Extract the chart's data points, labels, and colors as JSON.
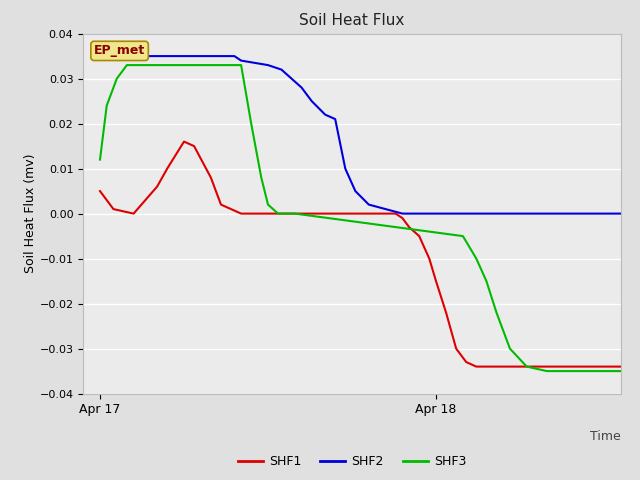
{
  "title": "Soil Heat Flux",
  "xlabel": "Time",
  "ylabel": "Soil Heat Flux (mv)",
  "ylim": [
    -0.04,
    0.04
  ],
  "yticks": [
    -0.04,
    -0.03,
    -0.02,
    -0.01,
    0.0,
    0.01,
    0.02,
    0.03,
    0.04
  ],
  "xtick_labels": [
    "Apr 17",
    "Apr 18"
  ],
  "xtick_pos": [
    0.0,
    1.0
  ],
  "xlim": [
    -0.05,
    1.55
  ],
  "annotation_text": "EP_met",
  "fig_facecolor": "#e0e0e0",
  "plot_bg_color": "#ebebeb",
  "grid_color": "#ffffff",
  "shf1_color": "#dd0000",
  "shf2_color": "#0000dd",
  "shf3_color": "#00bb00",
  "legend_labels": [
    "SHF1",
    "SHF2",
    "SHF3"
  ],
  "shf1_x": [
    0.0,
    0.04,
    0.1,
    0.17,
    0.2,
    0.25,
    0.28,
    0.33,
    0.36,
    0.42,
    0.48,
    0.52,
    0.55,
    0.58,
    0.88,
    0.9,
    0.92,
    0.95,
    0.98,
    1.0,
    1.03,
    1.06,
    1.09,
    1.12,
    1.2,
    1.45,
    1.55
  ],
  "shf1_y": [
    0.005,
    0.001,
    0.0,
    0.006,
    0.01,
    0.016,
    0.015,
    0.008,
    0.002,
    0.0,
    0.0,
    0.0,
    0.0,
    0.0,
    0.0,
    -0.001,
    -0.003,
    -0.005,
    -0.01,
    -0.015,
    -0.022,
    -0.03,
    -0.033,
    -0.034,
    -0.034,
    -0.034,
    -0.034
  ],
  "shf2_x": [
    0.0,
    0.4,
    0.42,
    0.5,
    0.54,
    0.57,
    0.6,
    0.63,
    0.67,
    0.7,
    0.73,
    0.76,
    0.8,
    0.85,
    0.9,
    1.0,
    1.55
  ],
  "shf2_y": [
    0.035,
    0.035,
    0.034,
    0.033,
    0.032,
    0.03,
    0.028,
    0.025,
    0.022,
    0.021,
    0.01,
    0.005,
    0.002,
    0.001,
    0.0,
    0.0,
    0.0
  ],
  "shf3_x": [
    0.0,
    0.02,
    0.05,
    0.08,
    0.1,
    0.15,
    0.35,
    0.38,
    0.4,
    0.42,
    0.45,
    0.48,
    0.5,
    0.53,
    0.56,
    0.58,
    1.08,
    1.12,
    1.15,
    1.18,
    1.22,
    1.27,
    1.33,
    1.38,
    1.55
  ],
  "shf3_y": [
    0.012,
    0.024,
    0.03,
    0.033,
    0.033,
    0.033,
    0.033,
    0.033,
    0.033,
    0.033,
    0.02,
    0.008,
    0.002,
    0.0,
    0.0,
    0.0,
    -0.005,
    -0.01,
    -0.015,
    -0.022,
    -0.03,
    -0.034,
    -0.035,
    -0.035,
    -0.035
  ]
}
